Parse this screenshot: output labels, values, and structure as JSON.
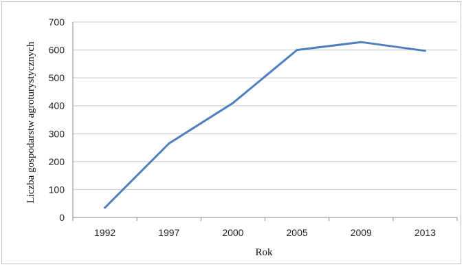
{
  "chart_data": {
    "type": "line",
    "title": "",
    "xlabel": "Rok",
    "ylabel": "Liczba gospodarstw agroturystycznych",
    "ylim": [
      0,
      700
    ],
    "yticks": [
      0,
      100,
      200,
      300,
      400,
      500,
      600,
      700
    ],
    "categories": [
      "1992",
      "1997",
      "2000",
      "2005",
      "2009",
      "2013"
    ],
    "series": [
      {
        "values": [
          35,
          265,
          410,
          600,
          628,
          597
        ],
        "color": "#4f7fbf"
      }
    ],
    "grid": true,
    "legend": "none"
  }
}
